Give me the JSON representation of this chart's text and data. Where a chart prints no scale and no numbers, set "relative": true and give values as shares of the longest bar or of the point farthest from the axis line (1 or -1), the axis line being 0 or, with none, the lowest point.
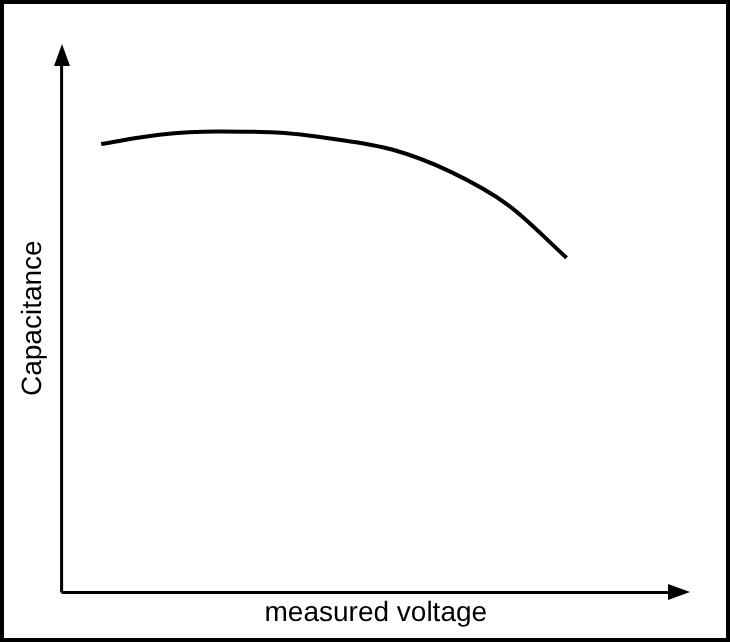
{
  "chart_data": {
    "type": "line",
    "relative": true,
    "xlabel": "measured voltage",
    "ylabel": "Capacitance",
    "categories": [
      null,
      null,
      null,
      null,
      null,
      null,
      null,
      null,
      null
    ],
    "series": [
      {
        "color": "#000000",
        "values": [
          0.973,
          0.993,
          1,
          0.998,
          0.984,
          0.961,
          0.913,
          0.84,
          0.726
        ]
      }
    ],
    "grid": false,
    "legend": false,
    "marker": "none",
    "line_style": "solid"
  }
}
